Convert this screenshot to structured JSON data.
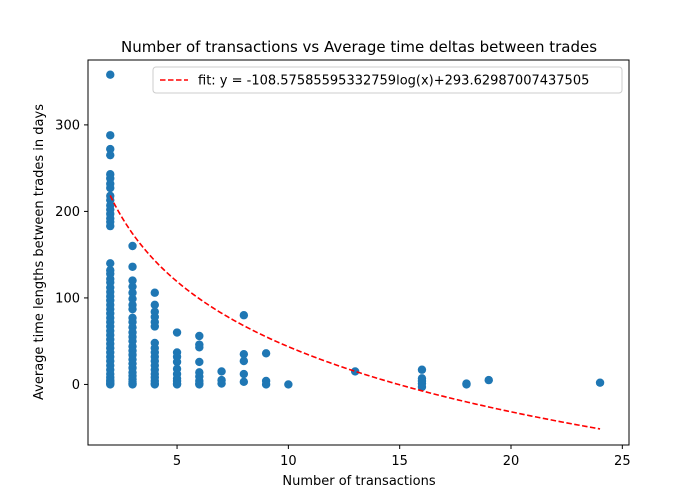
{
  "chart_data": {
    "type": "scatter",
    "title": "Number of transactions vs Average time deltas between trades",
    "xlabel": "Number of transactions",
    "ylabel": "Average time lengths between trades in days",
    "xlim": [
      1,
      25.3
    ],
    "ylim": [
      -70,
      375
    ],
    "xticks": [
      5,
      10,
      15,
      20,
      25
    ],
    "yticks": [
      0,
      100,
      200,
      300
    ],
    "grid": false,
    "legend_position": "top-right",
    "colors": {
      "scatter": "#1f77b4",
      "fit": "#ff0000"
    },
    "series": [
      {
        "type": "scatter",
        "points": [
          [
            2,
            358
          ],
          [
            2,
            288
          ],
          [
            2,
            272
          ],
          [
            2,
            265
          ],
          [
            2,
            243
          ],
          [
            2,
            238
          ],
          [
            2,
            232
          ],
          [
            2,
            227
          ],
          [
            2,
            218
          ],
          [
            2,
            213
          ],
          [
            2,
            207
          ],
          [
            2,
            202
          ],
          [
            2,
            197
          ],
          [
            2,
            192
          ],
          [
            2,
            188
          ],
          [
            2,
            183
          ],
          [
            2,
            140
          ],
          [
            2,
            132
          ],
          [
            2,
            128
          ],
          [
            2,
            122
          ],
          [
            2,
            118
          ],
          [
            2,
            112
          ],
          [
            2,
            107
          ],
          [
            2,
            102
          ],
          [
            2,
            97
          ],
          [
            2,
            92
          ],
          [
            2,
            87
          ],
          [
            2,
            82
          ],
          [
            2,
            77
          ],
          [
            2,
            72
          ],
          [
            2,
            67
          ],
          [
            2,
            62
          ],
          [
            2,
            57
          ],
          [
            2,
            52
          ],
          [
            2,
            47
          ],
          [
            2,
            42
          ],
          [
            2,
            37
          ],
          [
            2,
            32
          ],
          [
            2,
            27
          ],
          [
            2,
            22
          ],
          [
            2,
            17
          ],
          [
            2,
            12
          ],
          [
            2,
            8
          ],
          [
            2,
            5
          ],
          [
            2,
            3
          ],
          [
            2,
            1
          ],
          [
            2,
            0
          ],
          [
            3,
            160
          ],
          [
            3,
            136
          ],
          [
            3,
            120
          ],
          [
            3,
            113
          ],
          [
            3,
            106
          ],
          [
            3,
            99
          ],
          [
            3,
            92
          ],
          [
            3,
            87
          ],
          [
            3,
            77
          ],
          [
            3,
            72
          ],
          [
            3,
            66
          ],
          [
            3,
            60
          ],
          [
            3,
            55
          ],
          [
            3,
            50
          ],
          [
            3,
            44
          ],
          [
            3,
            39
          ],
          [
            3,
            34
          ],
          [
            3,
            29
          ],
          [
            3,
            24
          ],
          [
            3,
            19
          ],
          [
            3,
            14
          ],
          [
            3,
            10
          ],
          [
            3,
            6
          ],
          [
            3,
            3
          ],
          [
            3,
            1
          ],
          [
            3,
            0
          ],
          [
            4,
            106
          ],
          [
            4,
            92
          ],
          [
            4,
            84
          ],
          [
            4,
            78
          ],
          [
            4,
            72
          ],
          [
            4,
            67
          ],
          [
            4,
            48
          ],
          [
            4,
            42
          ],
          [
            4,
            37
          ],
          [
            4,
            32
          ],
          [
            4,
            27
          ],
          [
            4,
            22
          ],
          [
            4,
            17
          ],
          [
            4,
            12
          ],
          [
            4,
            8
          ],
          [
            4,
            4
          ],
          [
            4,
            1
          ],
          [
            4,
            0
          ],
          [
            5,
            60
          ],
          [
            5,
            37
          ],
          [
            5,
            32
          ],
          [
            5,
            26
          ],
          [
            5,
            18
          ],
          [
            5,
            12
          ],
          [
            5,
            7
          ],
          [
            5,
            4
          ],
          [
            5,
            1
          ],
          [
            5,
            0
          ],
          [
            6,
            56
          ],
          [
            6,
            46
          ],
          [
            6,
            43
          ],
          [
            6,
            26
          ],
          [
            6,
            14
          ],
          [
            6,
            9
          ],
          [
            6,
            4
          ],
          [
            6,
            1
          ],
          [
            6,
            0
          ],
          [
            7,
            15
          ],
          [
            7,
            5
          ],
          [
            7,
            1
          ],
          [
            8,
            80
          ],
          [
            8,
            35
          ],
          [
            8,
            27
          ],
          [
            8,
            12
          ],
          [
            8,
            3
          ],
          [
            9,
            36
          ],
          [
            9,
            4
          ],
          [
            9,
            0
          ],
          [
            10,
            0
          ],
          [
            13,
            15
          ],
          [
            16,
            17
          ],
          [
            16,
            7
          ],
          [
            16,
            4
          ],
          [
            16,
            1
          ],
          [
            16,
            -3
          ],
          [
            18,
            1
          ],
          [
            18,
            0
          ],
          [
            19,
            5
          ],
          [
            24,
            2
          ]
        ]
      },
      {
        "type": "line",
        "name": "fit: y = -108.57585595332759log(x)+293.62987007437505",
        "style": "dashed",
        "function": {
          "a": -108.57585595332759,
          "b": 293.62987007437505
        },
        "x_range": [
          2,
          24
        ]
      }
    ]
  }
}
